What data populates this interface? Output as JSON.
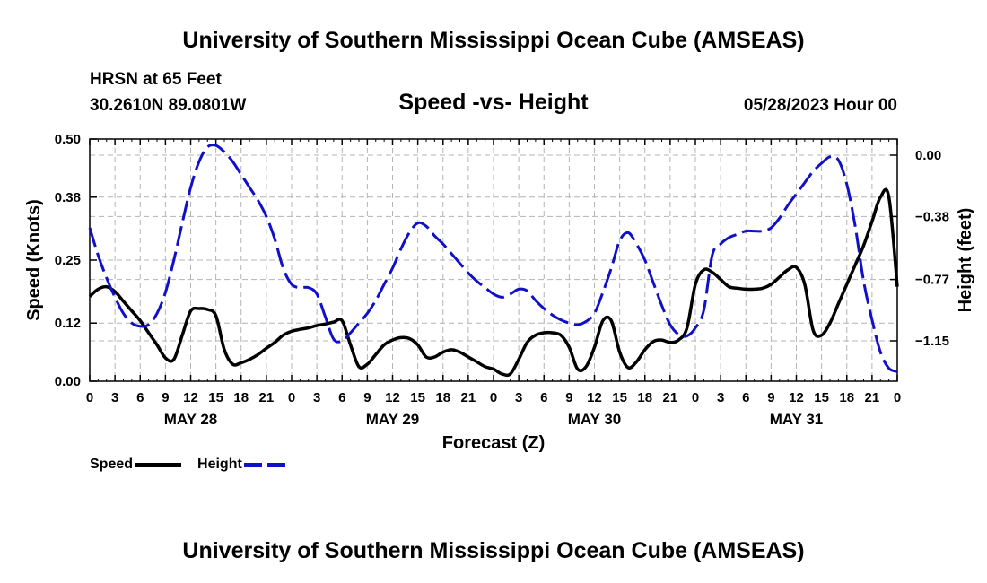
{
  "page": {
    "title": "University of Southern Mississippi Ocean Cube (AMSEAS)",
    "footer_title": "University of Southern Mississippi Ocean Cube (AMSEAS)",
    "station": "HRSN at 65 Feet",
    "coords": "30.2610N  89.0801W",
    "subtitle": "Speed -vs- Height",
    "datetime": "05/28/2023 Hour 00"
  },
  "colors": {
    "speed": "#000000",
    "height": "#1010c8",
    "grid": "#b4b4b4"
  },
  "legend": [
    {
      "label": "Speed",
      "color": "#000000",
      "style": "solid"
    },
    {
      "label": "Height",
      "color": "#1010c8",
      "style": "dashed"
    }
  ],
  "chart_data": {
    "type": "line",
    "title": "Speed -vs- Height",
    "xlabel": "Forecast (Z)",
    "ylabel": "Speed (Knots)",
    "y2label": "Height (feet)",
    "xlim": [
      0,
      96
    ],
    "ylim": [
      0,
      0.5
    ],
    "y2lim": [
      -1.4,
      0.1
    ],
    "y_ticks": [
      "0.00",
      "0.12",
      "0.25",
      "0.38",
      "0.50"
    ],
    "y2_ticks": [
      "0.00",
      "−0.38",
      "−0.77",
      "−1.15"
    ],
    "x_tick_labels": [
      "0",
      "3",
      "6",
      "9",
      "12",
      "15",
      "18",
      "21",
      "0",
      "3",
      "6",
      "9",
      "12",
      "15",
      "18",
      "21",
      "0",
      "3",
      "6",
      "9",
      "12",
      "15",
      "18",
      "21",
      "0",
      "3",
      "6",
      "9",
      "12",
      "15",
      "18",
      "21",
      "0"
    ],
    "day_labels": [
      {
        "x": 12,
        "label": "MAY 28"
      },
      {
        "x": 36,
        "label": "MAY 29"
      },
      {
        "x": 60,
        "label": "MAY 30"
      },
      {
        "x": 84,
        "label": "MAY 31"
      }
    ],
    "grid": true,
    "series": [
      {
        "name": "Speed",
        "axis": "left",
        "x": [
          0,
          1,
          2,
          3,
          4,
          5,
          6,
          7,
          8,
          9,
          10,
          11,
          12,
          13,
          14,
          15,
          16,
          17,
          18,
          19,
          20,
          21,
          22,
          23,
          24,
          25,
          26,
          27,
          28,
          29,
          30,
          31,
          32,
          33,
          34,
          35,
          36,
          37,
          38,
          39,
          40,
          41,
          42,
          43,
          44,
          45,
          46,
          47,
          48,
          49,
          50,
          51,
          52,
          53,
          54,
          55,
          56,
          57,
          58,
          59,
          60,
          61,
          62,
          63,
          64,
          65,
          66,
          67,
          68,
          69,
          70,
          71,
          72,
          73,
          74,
          75,
          76,
          77,
          78,
          79,
          80,
          81,
          82,
          83,
          84,
          85,
          86,
          87,
          88,
          89,
          90,
          91,
          92,
          93,
          94,
          95,
          96
        ],
        "values": [
          0.175,
          0.19,
          0.195,
          0.185,
          0.165,
          0.145,
          0.125,
          0.1,
          0.075,
          0.048,
          0.045,
          0.095,
          0.145,
          0.15,
          0.148,
          0.135,
          0.065,
          0.035,
          0.038,
          0.045,
          0.055,
          0.068,
          0.08,
          0.095,
          0.103,
          0.107,
          0.11,
          0.115,
          0.118,
          0.122,
          0.125,
          0.075,
          0.03,
          0.035,
          0.055,
          0.075,
          0.085,
          0.09,
          0.088,
          0.075,
          0.05,
          0.05,
          0.06,
          0.065,
          0.06,
          0.05,
          0.04,
          0.03,
          0.025,
          0.015,
          0.015,
          0.045,
          0.08,
          0.095,
          0.1,
          0.1,
          0.095,
          0.07,
          0.025,
          0.03,
          0.07,
          0.125,
          0.125,
          0.06,
          0.028,
          0.04,
          0.065,
          0.082,
          0.085,
          0.08,
          0.085,
          0.11,
          0.2,
          0.23,
          0.225,
          0.21,
          0.195,
          0.192,
          0.19,
          0.19,
          0.192,
          0.2,
          0.215,
          0.23,
          0.235,
          0.2,
          0.105,
          0.095,
          0.12,
          0.16,
          0.2,
          0.24,
          0.28,
          0.33,
          0.38,
          0.38,
          0.195
        ]
      },
      {
        "name": "Height",
        "axis": "right",
        "x": [
          0,
          1,
          2,
          3,
          4,
          5,
          6,
          7,
          8,
          9,
          10,
          11,
          12,
          13,
          14,
          15,
          16,
          17,
          18,
          19,
          20,
          21,
          22,
          23,
          24,
          25,
          26,
          27,
          28,
          29,
          30,
          31,
          32,
          33,
          34,
          35,
          36,
          37,
          38,
          39,
          40,
          41,
          42,
          43,
          44,
          45,
          46,
          47,
          48,
          49,
          50,
          51,
          52,
          53,
          54,
          55,
          56,
          57,
          58,
          59,
          60,
          61,
          62,
          63,
          64,
          65,
          66,
          67,
          68,
          69,
          70,
          71,
          72,
          73,
          74,
          75,
          76,
          77,
          78,
          79,
          80,
          81,
          82,
          83,
          84,
          85,
          86,
          87,
          88,
          89,
          90,
          91,
          92,
          93,
          94,
          95,
          96
        ],
        "values": [
          -0.45,
          -0.62,
          -0.76,
          -0.88,
          -0.98,
          -1.04,
          -1.06,
          -1.05,
          -0.98,
          -0.85,
          -0.65,
          -0.42,
          -0.2,
          -0.04,
          0.05,
          0.06,
          0.02,
          -0.04,
          -0.12,
          -0.2,
          -0.28,
          -0.38,
          -0.52,
          -0.7,
          -0.8,
          -0.82,
          -0.82,
          -0.86,
          -1.0,
          -1.14,
          -1.15,
          -1.1,
          -1.04,
          -0.98,
          -0.9,
          -0.8,
          -0.7,
          -0.58,
          -0.48,
          -0.42,
          -0.44,
          -0.5,
          -0.55,
          -0.61,
          -0.67,
          -0.73,
          -0.78,
          -0.82,
          -0.86,
          -0.88,
          -0.86,
          -0.83,
          -0.84,
          -0.9,
          -0.95,
          -0.99,
          -1.02,
          -1.04,
          -1.05,
          -1.03,
          -0.98,
          -0.85,
          -0.7,
          -0.53,
          -0.48,
          -0.55,
          -0.65,
          -0.79,
          -0.93,
          -1.05,
          -1.11,
          -1.12,
          -1.07,
          -0.96,
          -0.62,
          -0.55,
          -0.51,
          -0.49,
          -0.47,
          -0.47,
          -0.47,
          -0.45,
          -0.39,
          -0.31,
          -0.24,
          -0.17,
          -0.1,
          -0.05,
          -0.01,
          -0.03,
          -0.18,
          -0.44,
          -0.78,
          -1.02,
          -1.22,
          -1.32,
          -1.34
        ]
      }
    ]
  }
}
